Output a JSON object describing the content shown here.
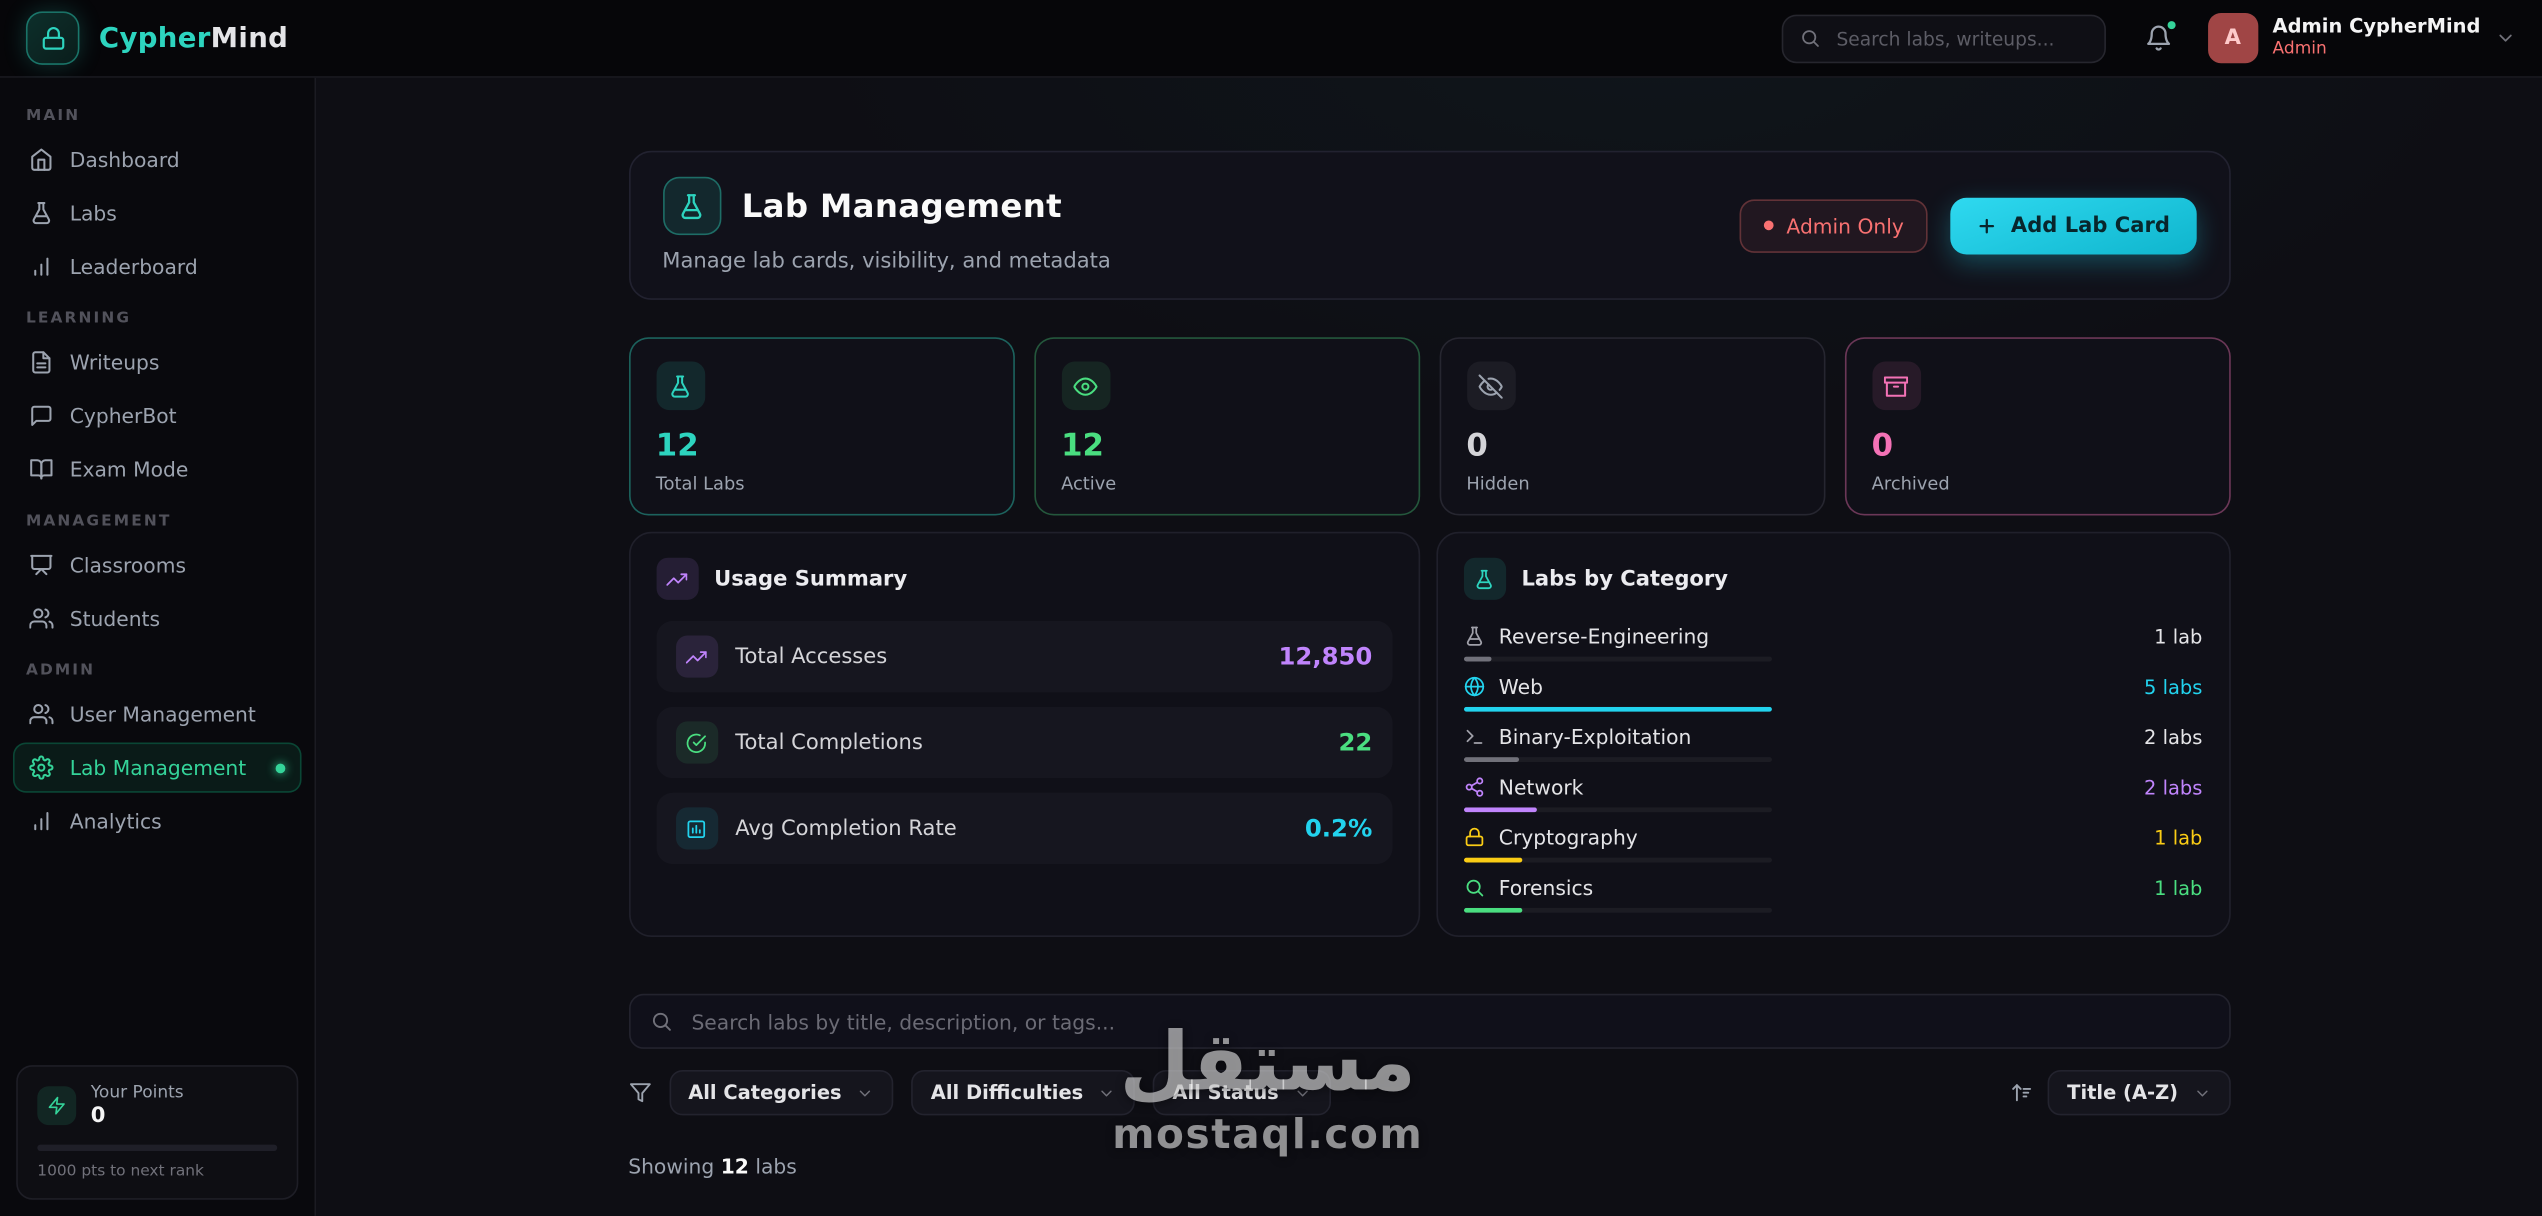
{
  "brand": {
    "name_accent": "Cypher",
    "name_rest": "Mind",
    "logo_icon": "lock-icon",
    "accent_color": "#2dd4bf"
  },
  "topbar": {
    "search_placeholder": "Search labs, writeups...",
    "bell_icon": "bell-icon",
    "user": {
      "name": "Admin CypherMind",
      "role": "Admin",
      "avatar_letter": "A",
      "role_color": "#f87171"
    }
  },
  "sidebar": {
    "sections": [
      {
        "label": "MAIN",
        "items": [
          {
            "label": "Dashboard",
            "icon": "home-icon"
          },
          {
            "label": "Labs",
            "icon": "flask-icon"
          },
          {
            "label": "Leaderboard",
            "icon": "bar-chart-icon"
          }
        ]
      },
      {
        "label": "LEARNING",
        "items": [
          {
            "label": "Writeups",
            "icon": "file-text-icon"
          },
          {
            "label": "CypherBot",
            "icon": "chat-icon"
          },
          {
            "label": "Exam Mode",
            "icon": "book-icon"
          }
        ]
      },
      {
        "label": "MANAGEMENT",
        "items": [
          {
            "label": "Classrooms",
            "icon": "presentation-icon"
          },
          {
            "label": "Students",
            "icon": "users-icon"
          }
        ]
      },
      {
        "label": "ADMIN",
        "items": [
          {
            "label": "User Management",
            "icon": "users-icon"
          },
          {
            "label": "Lab Management",
            "icon": "gear-icon",
            "active": true
          },
          {
            "label": "Analytics",
            "icon": "bar-chart-icon"
          }
        ]
      }
    ],
    "points": {
      "title": "Your Points",
      "value": "0",
      "progress_pct": 0,
      "hint": "1000 pts to next rank"
    }
  },
  "page": {
    "title": "Lab Management",
    "subtitle": "Manage lab cards, visibility, and metadata",
    "header_icon": "flask-icon",
    "admin_badge": "Admin Only",
    "add_lab_button": "Add Lab Card"
  },
  "stats": [
    {
      "label": "Total Labs",
      "value": "12",
      "icon": "flask-icon",
      "color": "#2dd4bf"
    },
    {
      "label": "Active",
      "value": "12",
      "icon": "eye-icon",
      "color": "#4ade80"
    },
    {
      "label": "Hidden",
      "value": "0",
      "icon": "eye-off-icon",
      "color": "#a1a1aa"
    },
    {
      "label": "Archived",
      "value": "0",
      "icon": "archive-icon",
      "color": "#f472b6"
    }
  ],
  "usage_summary": {
    "title": "Usage Summary",
    "title_icon": "trending-up-icon",
    "rows": [
      {
        "label": "Total Accesses",
        "value": "12,850",
        "icon": "trending-up-icon",
        "color": "#c084fc"
      },
      {
        "label": "Total Completions",
        "value": "22",
        "icon": "check-circle-icon",
        "color": "#4ade80"
      },
      {
        "label": "Avg Completion Rate",
        "value": "0.2%",
        "icon": "bar-chart-sq-icon",
        "color": "#22d3ee"
      }
    ]
  },
  "labs_by_category": {
    "title": "Labs by Category",
    "title_icon": "flask-icon",
    "rows": [
      {
        "label": "Reverse-Engineering",
        "count": "1 lab",
        "icon": "flask-icon",
        "bar_pct": 9,
        "color": "#a1a1aa"
      },
      {
        "label": "Web",
        "count": "5 labs",
        "icon": "globe-icon",
        "bar_pct": 100,
        "color": "#22d3ee"
      },
      {
        "label": "Binary-Exploitation",
        "count": "2 labs",
        "icon": "terminal-icon",
        "bar_pct": 18,
        "color": "#a1a1aa"
      },
      {
        "label": "Network",
        "count": "2 labs",
        "icon": "network-icon",
        "bar_pct": 24,
        "color": "#c084fc"
      },
      {
        "label": "Cryptography",
        "count": "1 lab",
        "icon": "lock-icon",
        "bar_pct": 19,
        "color": "#facc15"
      },
      {
        "label": "Forensics",
        "count": "1 lab",
        "icon": "search-icon",
        "bar_pct": 19,
        "color": "#4ade80"
      }
    ]
  },
  "toolbar": {
    "search_placeholder": "Search labs by title, description, or tags...",
    "filters": {
      "categories": "All Categories",
      "difficulties": "All Difficulties",
      "status": "All Status",
      "sort": "Title (A-Z)"
    }
  },
  "results": {
    "prefix": "Showing",
    "count": "12",
    "suffix": "labs"
  },
  "watermark": {
    "line1": "مستقل",
    "line2": "mostaql.com"
  }
}
